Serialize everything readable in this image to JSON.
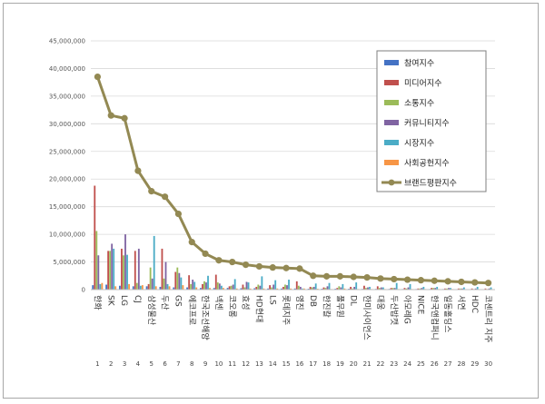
{
  "chart_data": {
    "type": "bar",
    "ylim": [
      0,
      45000000
    ],
    "yticks": [
      "0",
      "5,000,000",
      "10,000,000",
      "15,000,000",
      "20,000,000",
      "25,000,000",
      "30,000,000",
      "35,000,000",
      "40,000,000",
      "45,000,000"
    ],
    "categories": [
      "한화",
      "SK",
      "LG",
      "CJ",
      "삼성물산",
      "두산",
      "GS",
      "에코프로",
      "한국조선해양",
      "넥센",
      "코오롱",
      "효성",
      "HD현대",
      "LS",
      "롯데지주",
      "영진",
      "DB",
      "한진칼",
      "풀무원",
      "DL",
      "한미사이언스",
      "대웅",
      "두산밥캣",
      "아모레G",
      "NICE",
      "한국앤컴퍼니",
      "일동홀딩스",
      "서연",
      "HDC",
      "코센트리 지주"
    ],
    "ranks": [
      "1",
      "2",
      "3",
      "4",
      "5",
      "6",
      "7",
      "8",
      "9",
      "10",
      "11",
      "12",
      "13",
      "14",
      "15",
      "16",
      "17",
      "18",
      "19",
      "20",
      "21",
      "22",
      "23",
      "24",
      "25",
      "26",
      "27",
      "28",
      "29",
      "30"
    ],
    "grid": true,
    "legend_position": "top-right",
    "series": [
      {
        "name": "참여지수",
        "kind": "bar",
        "color": "#4472c4",
        "values": [
          800000,
          900000,
          700000,
          600000,
          600000,
          500000,
          400000,
          400000,
          300000,
          300000,
          300000,
          250000,
          250000,
          200000,
          200000,
          200000,
          150000,
          150000,
          150000,
          150000,
          120000,
          120000,
          120000,
          100000,
          100000,
          100000,
          100000,
          80000,
          80000,
          80000
        ]
      },
      {
        "name": "미디어지수",
        "kind": "bar",
        "color": "#c0504d",
        "values": [
          18800000,
          7000000,
          7400000,
          7000000,
          1000000,
          7400000,
          3200000,
          2600000,
          1000000,
          2700000,
          600000,
          900000,
          500000,
          800000,
          500000,
          1500000,
          500000,
          400000,
          300000,
          500000,
          700000,
          600000,
          300000,
          300000,
          200000,
          300000,
          200000,
          200000,
          200000,
          200000
        ]
      },
      {
        "name": "소통지수",
        "kind": "bar",
        "color": "#9bbb59",
        "values": [
          10600000,
          7000000,
          6200000,
          1200000,
          4000000,
          2000000,
          4000000,
          1000000,
          1500000,
          1300000,
          700000,
          400000,
          900000,
          400000,
          900000,
          700000,
          400000,
          300000,
          600000,
          200000,
          300000,
          300000,
          300000,
          200000,
          200000,
          300000,
          200000,
          200000,
          100000,
          100000
        ]
      },
      {
        "name": "커뮤니티지수",
        "kind": "bar",
        "color": "#8064a2",
        "values": [
          6200000,
          8300000,
          10000000,
          7400000,
          2000000,
          5000000,
          3000000,
          1800000,
          1300000,
          1100000,
          900000,
          1400000,
          700000,
          900000,
          800000,
          500000,
          500000,
          600000,
          400000,
          500000,
          400000,
          400000,
          300000,
          400000,
          300000,
          300000,
          300000,
          200000,
          200000,
          200000
        ]
      },
      {
        "name": "시장지수",
        "kind": "bar",
        "color": "#4bacc6",
        "values": [
          1000000,
          7400000,
          6300000,
          700000,
          9700000,
          1000000,
          2200000,
          1400000,
          2500000,
          700000,
          1900000,
          1300000,
          2400000,
          1700000,
          1800000,
          200000,
          1100000,
          1200000,
          1000000,
          1300000,
          500000,
          400000,
          1200000,
          1000000,
          500000,
          500000,
          300000,
          400000,
          500000,
          400000
        ]
      },
      {
        "name": "사회공헌지수",
        "kind": "bar",
        "color": "#f79646",
        "values": [
          1200000,
          600000,
          1000000,
          800000,
          600000,
          600000,
          800000,
          400000,
          300000,
          300000,
          200000,
          200000,
          200000,
          200000,
          200000,
          200000,
          150000,
          100000,
          200000,
          100000,
          100000,
          100000,
          100000,
          100000,
          100000,
          100000,
          100000,
          80000,
          80000,
          80000
        ]
      },
      {
        "name": "브랜드평판지수",
        "kind": "line",
        "color": "#938953",
        "values": [
          38500000,
          31500000,
          31000000,
          21500000,
          17800000,
          16800000,
          13700000,
          8600000,
          6500000,
          5300000,
          5000000,
          4500000,
          4200000,
          4000000,
          3900000,
          3800000,
          2500000,
          2400000,
          2400000,
          2300000,
          2200000,
          2000000,
          1900000,
          1800000,
          1700000,
          1600000,
          1500000,
          1400000,
          1300000,
          1200000
        ]
      }
    ]
  }
}
